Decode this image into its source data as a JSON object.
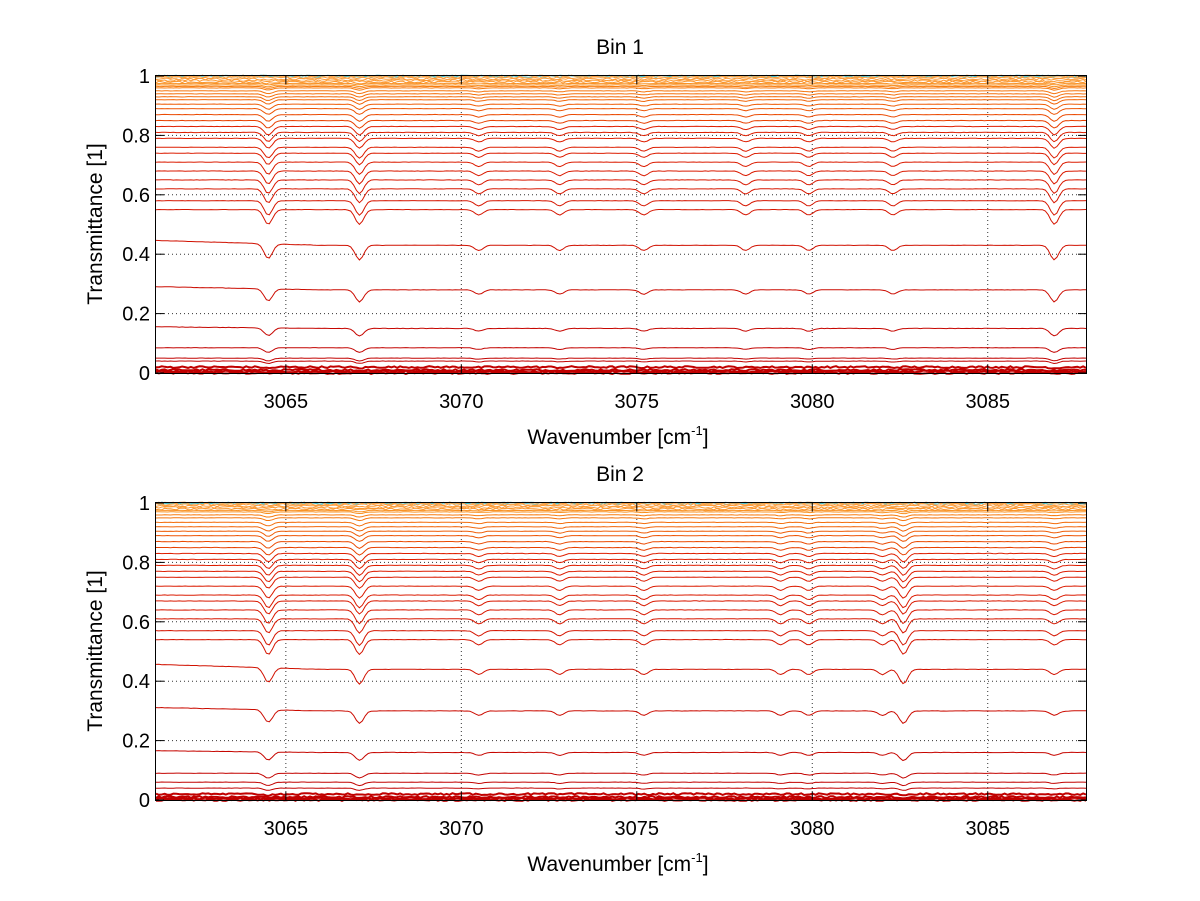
{
  "chart_data": [
    {
      "type": "line",
      "title": "Bin 1",
      "xlabel": "Wavenumber [cm",
      "xlabel_sup": "-1",
      "xlabel_close": "]",
      "ylabel": "Transmittance [1]",
      "xlim": [
        3061.3,
        3087.8
      ],
      "ylim": [
        0,
        1
      ],
      "xticks": [
        3065,
        3070,
        3075,
        3080,
        3085
      ],
      "yticks": [
        0,
        0.2,
        0.4,
        0.6,
        0.8,
        1
      ],
      "ytick_labels": [
        "0",
        "0.2",
        "0.4",
        "0.6",
        "0.8",
        "1"
      ],
      "grid": true,
      "absorption_lines": [
        3064.5,
        3067.1,
        3070.5,
        3072.8,
        3075.2,
        3078.1,
        3079.9,
        3082.3,
        3086.9
      ],
      "baseline_levels": [
        0.0,
        0.005,
        0.01,
        0.02,
        0.04,
        0.05,
        0.085,
        0.15,
        0.28,
        0.43,
        0.55,
        0.58,
        0.62,
        0.65,
        0.68,
        0.71,
        0.74,
        0.76,
        0.79,
        0.81,
        0.83,
        0.85,
        0.87,
        0.89,
        0.905,
        0.92,
        0.93,
        0.94,
        0.95,
        0.96,
        0.965,
        0.97,
        0.975,
        0.98,
        0.985,
        0.99,
        0.995,
        1.0
      ],
      "colors": [
        "#c00000",
        "#d01000",
        "#dd3000",
        "#e85000",
        "#f07000",
        "#f89020",
        "#ffa040",
        "#1fb0c0"
      ]
    },
    {
      "type": "line",
      "title": "Bin 2",
      "xlabel": "Wavenumber [cm",
      "xlabel_sup": "-1",
      "xlabel_close": "]",
      "ylabel": "Transmittance [1]",
      "xlim": [
        3061.3,
        3087.8
      ],
      "ylim": [
        0,
        1
      ],
      "xticks": [
        3065,
        3070,
        3075,
        3080,
        3085
      ],
      "yticks": [
        0,
        0.2,
        0.4,
        0.6,
        0.8,
        1
      ],
      "ytick_labels": [
        "0",
        "0.2",
        "0.4",
        "0.6",
        "0.8",
        "1"
      ],
      "grid": true,
      "absorption_lines": [
        3064.5,
        3067.1,
        3070.5,
        3072.8,
        3075.2,
        3079.1,
        3079.9,
        3082.0,
        3082.6,
        3086.9
      ],
      "baseline_levels": [
        0.0,
        0.005,
        0.01,
        0.02,
        0.04,
        0.06,
        0.09,
        0.16,
        0.3,
        0.44,
        0.54,
        0.57,
        0.61,
        0.64,
        0.67,
        0.69,
        0.72,
        0.75,
        0.77,
        0.79,
        0.81,
        0.83,
        0.85,
        0.87,
        0.89,
        0.905,
        0.92,
        0.935,
        0.95,
        0.96,
        0.97,
        0.975,
        0.98,
        0.985,
        0.99,
        0.995,
        1.0
      ],
      "colors": [
        "#c00000",
        "#d01000",
        "#dd3000",
        "#e85000",
        "#f07000",
        "#f89020",
        "#ffa040",
        "#1fb0c0"
      ]
    }
  ]
}
